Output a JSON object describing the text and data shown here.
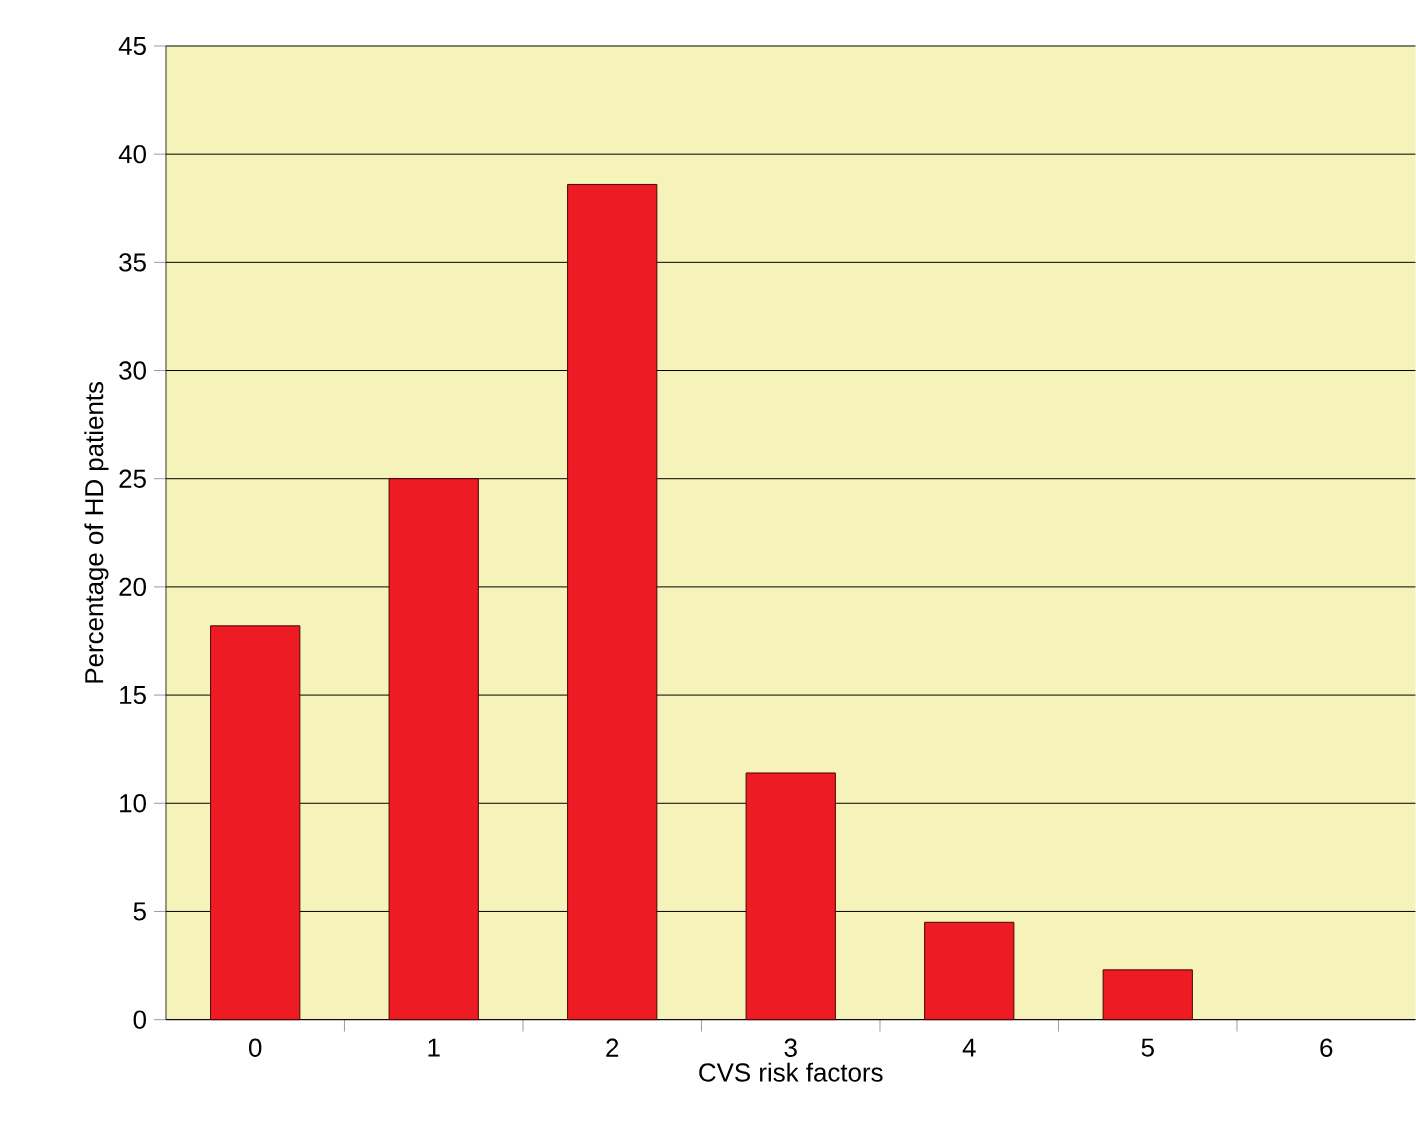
{
  "chart_data": {
    "type": "bar",
    "xlabel": "CVS risk factors",
    "ylabel": "Percentage of HD patients",
    "categories": [
      "0",
      "1",
      "2",
      "3",
      "4",
      "5",
      "6"
    ],
    "values": [
      18.2,
      25.0,
      38.6,
      11.4,
      4.5,
      2.3,
      0
    ],
    "color": "#ed1c24",
    "ylim": [
      0,
      45
    ],
    "yticks": [
      0,
      5,
      10,
      15,
      20,
      25,
      30,
      35,
      40,
      45
    ],
    "grid": "y"
  }
}
